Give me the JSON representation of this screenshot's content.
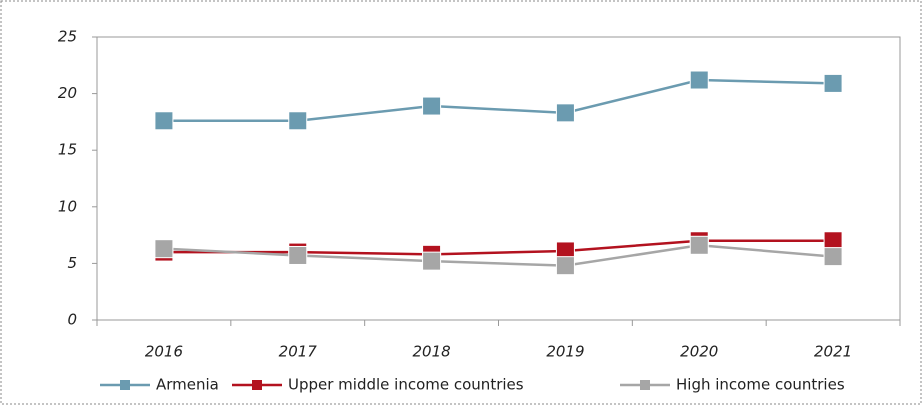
{
  "chart_data": {
    "type": "line",
    "categories": [
      "2016",
      "2017",
      "2018",
      "2019",
      "2020",
      "2021"
    ],
    "series": [
      {
        "name": "Armenia",
        "color": "#6b9bb0",
        "values": [
          17.6,
          17.6,
          18.9,
          18.3,
          21.2,
          20.9
        ]
      },
      {
        "name": "Upper middle income countries",
        "color": "#b3121f",
        "values": [
          6.0,
          6.0,
          5.8,
          6.1,
          7.0,
          7.0
        ]
      },
      {
        "name": "High income countries",
        "color": "#a6a6a6",
        "values": [
          6.3,
          5.7,
          5.2,
          4.8,
          6.6,
          5.6
        ]
      }
    ],
    "ylim": [
      0,
      25
    ],
    "yticks": [
      0,
      5,
      10,
      15,
      20,
      25
    ],
    "legend": "bottom"
  }
}
